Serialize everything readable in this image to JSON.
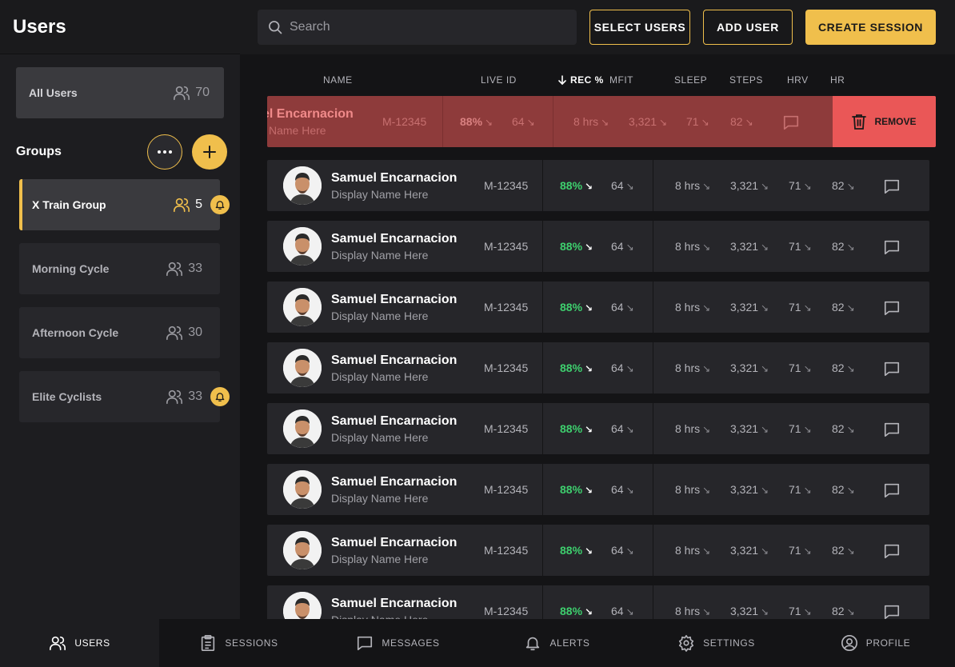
{
  "sidebar": {
    "title": "Users",
    "all_users": {
      "label": "All Users",
      "count": "70"
    },
    "groups_title": "Groups",
    "groups": [
      {
        "label": "X  Train Group",
        "count": "5",
        "alert": true,
        "active": true
      },
      {
        "label": "Morning Cycle",
        "count": "33",
        "alert": false,
        "active": false
      },
      {
        "label": "Afternoon Cycle",
        "count": "30",
        "alert": false,
        "active": false
      },
      {
        "label": "Elite Cyclists",
        "count": "33",
        "alert": true,
        "active": false
      }
    ]
  },
  "topbar": {
    "search_placeholder": "Search",
    "select_users_label": "SELECT USERS",
    "add_user_label": "ADD USER",
    "create_session_label": "CREATE SESSION"
  },
  "table": {
    "headers": {
      "name": "NAME",
      "live_id": "LIVE ID",
      "rec": "REC %",
      "mfit": "MFIT",
      "sleep": "SLEEP",
      "steps": "STEPS",
      "hrv": "HRV",
      "hr": "HR"
    },
    "swiped_row": {
      "name": "el Encarnacion",
      "display": "Name Here",
      "live_id": "M-12345",
      "rec": "88%",
      "mfit": "64",
      "sleep": "8 hrs",
      "steps": "3,321",
      "hrv": "71",
      "hr": "82",
      "remove_label": "REMOVE"
    },
    "rows": [
      {
        "name": "Samuel Encarnacion",
        "display": "Display Name Here",
        "live_id": "M-12345",
        "rec": "88%",
        "mfit": "64",
        "sleep": "8 hrs",
        "steps": "3,321",
        "hrv": "71",
        "hr": "82"
      },
      {
        "name": "Samuel Encarnacion",
        "display": "Display Name Here",
        "live_id": "M-12345",
        "rec": "88%",
        "mfit": "64",
        "sleep": "8 hrs",
        "steps": "3,321",
        "hrv": "71",
        "hr": "82"
      },
      {
        "name": "Samuel Encarnacion",
        "display": "Display Name Here",
        "live_id": "M-12345",
        "rec": "88%",
        "mfit": "64",
        "sleep": "8 hrs",
        "steps": "3,321",
        "hrv": "71",
        "hr": "82"
      },
      {
        "name": "Samuel Encarnacion",
        "display": "Display Name Here",
        "live_id": "M-12345",
        "rec": "88%",
        "mfit": "64",
        "sleep": "8 hrs",
        "steps": "3,321",
        "hrv": "71",
        "hr": "82"
      },
      {
        "name": "Samuel Encarnacion",
        "display": "Display Name Here",
        "live_id": "M-12345",
        "rec": "88%",
        "mfit": "64",
        "sleep": "8 hrs",
        "steps": "3,321",
        "hrv": "71",
        "hr": "82"
      },
      {
        "name": "Samuel Encarnacion",
        "display": "Display Name Here",
        "live_id": "M-12345",
        "rec": "88%",
        "mfit": "64",
        "sleep": "8 hrs",
        "steps": "3,321",
        "hrv": "71",
        "hr": "82"
      },
      {
        "name": "Samuel Encarnacion",
        "display": "Display Name Here",
        "live_id": "M-12345",
        "rec": "88%",
        "mfit": "64",
        "sleep": "8 hrs",
        "steps": "3,321",
        "hrv": "71",
        "hr": "82"
      },
      {
        "name": "Samuel Encarnacion",
        "display": "Display Name Here",
        "live_id": "M-12345",
        "rec": "88%",
        "mfit": "64",
        "sleep": "8 hrs",
        "steps": "3,321",
        "hrv": "71",
        "hr": "82"
      }
    ]
  },
  "bottom_nav": [
    {
      "label": "USERS",
      "icon": "users-icon",
      "active": true
    },
    {
      "label": "SESSIONS",
      "icon": "clipboard-icon",
      "active": false
    },
    {
      "label": "MESSAGES",
      "icon": "message-icon",
      "active": false
    },
    {
      "label": "ALERTS",
      "icon": "bell-icon",
      "active": false
    },
    {
      "label": "SETTINGS",
      "icon": "gear-icon",
      "active": false
    },
    {
      "label": "PROFILE",
      "icon": "profile-icon",
      "active": false
    }
  ],
  "colors": {
    "accent": "#f0bf4c",
    "positive": "#3ecf6e",
    "danger": "#ea5757"
  }
}
